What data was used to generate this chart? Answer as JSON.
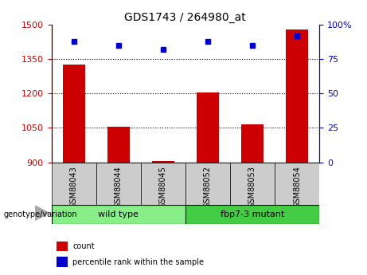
{
  "title": "GDS1743 / 264980_at",
  "samples": [
    "GSM88043",
    "GSM88044",
    "GSM88045",
    "GSM88052",
    "GSM88053",
    "GSM88054"
  ],
  "count_values": [
    1325,
    1055,
    905,
    1205,
    1065,
    1480
  ],
  "percentile_values": [
    88,
    85,
    82,
    88,
    85,
    92
  ],
  "ylim_left": [
    900,
    1500
  ],
  "ylim_right": [
    0,
    100
  ],
  "yticks_left": [
    900,
    1050,
    1200,
    1350,
    1500
  ],
  "yticks_right": [
    0,
    25,
    50,
    75,
    100
  ],
  "bar_color": "#cc0000",
  "dot_color": "#0000cc",
  "groups": [
    {
      "label": "wild type",
      "indices": [
        0,
        1,
        2
      ],
      "color": "#88ee88"
    },
    {
      "label": "fbp7-3 mutant",
      "indices": [
        3,
        4,
        5
      ],
      "color": "#44cc44"
    }
  ],
  "group_label": "genotype/variation",
  "legend_count_label": "count",
  "legend_percentile_label": "percentile rank within the sample",
  "left_axis_color": "#cc0000",
  "right_axis_color": "#0000cc",
  "tick_bg_color": "#cccccc",
  "bar_width": 0.5
}
